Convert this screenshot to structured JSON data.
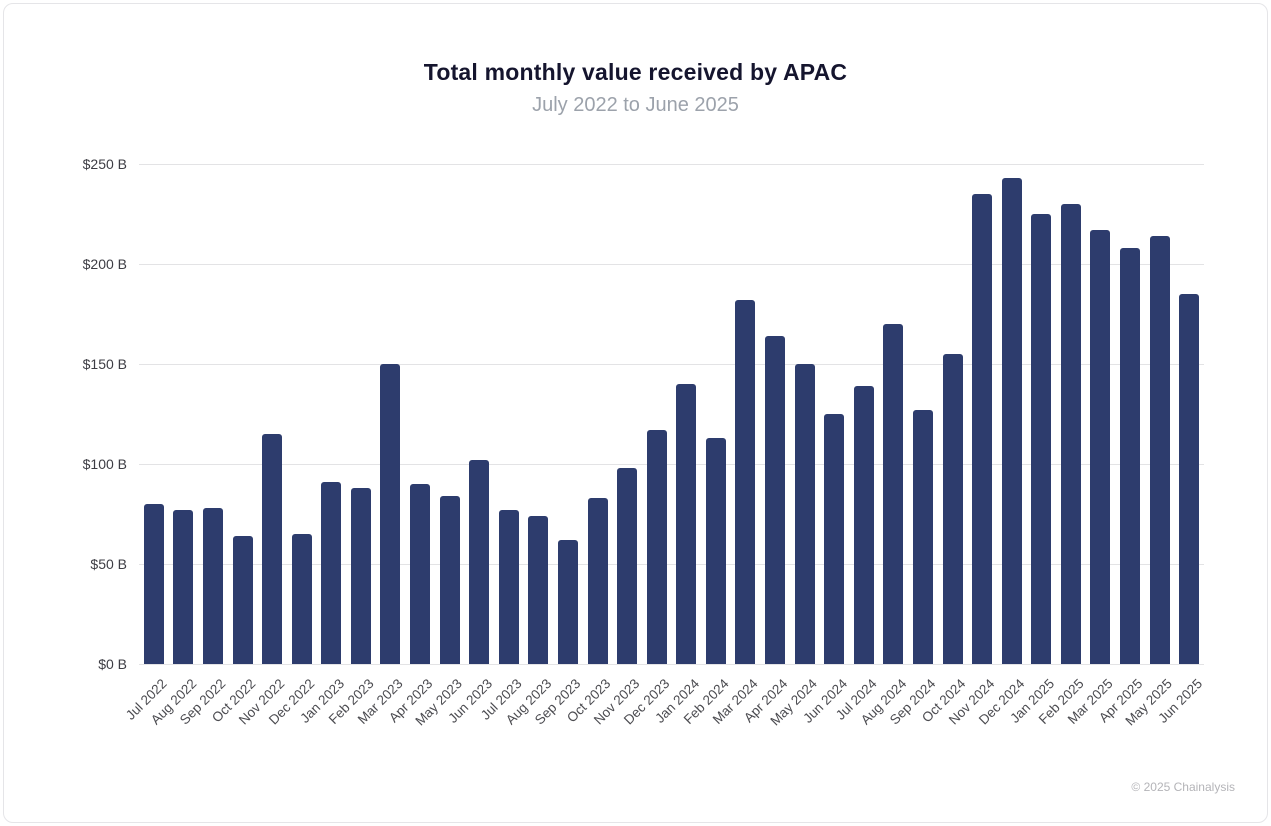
{
  "header": {
    "title": "Total monthly value received by APAC",
    "subtitle": "July 2022 to June 2025"
  },
  "footer": {
    "attribution": "© 2025 Chainalysis"
  },
  "chart_data": {
    "type": "bar",
    "title": "Total monthly value received by APAC",
    "subtitle": "July 2022 to June 2025",
    "unit": "USD billions",
    "xlabel": "",
    "ylabel": "",
    "ylim": [
      0,
      250
    ],
    "ytick_step": 50,
    "ytick_labels": [
      "$0 B",
      "$50 B",
      "$100 B",
      "$150 B",
      "$200 B",
      "$250 B"
    ],
    "grid": "horizontal",
    "legend": "none",
    "bar_color": "#2d3c6d",
    "background": "#ffffff",
    "categories": [
      "Jul 2022",
      "Aug 2022",
      "Sep 2022",
      "Oct 2022",
      "Nov 2022",
      "Dec 2022",
      "Jan 2023",
      "Feb 2023",
      "Mar 2023",
      "Apr 2023",
      "May 2023",
      "Jun 2023",
      "Jul 2023",
      "Aug 2023",
      "Sep 2023",
      "Oct 2023",
      "Nov 2023",
      "Dec 2023",
      "Jan 2024",
      "Feb 2024",
      "Mar 2024",
      "Apr 2024",
      "May 2024",
      "Jun 2024",
      "Jul 2024",
      "Aug 2024",
      "Sep 2024",
      "Oct 2024",
      "Nov 2024",
      "Dec 2024",
      "Jan 2025",
      "Feb 2025",
      "Mar 2025",
      "Apr 2025",
      "May 2025",
      "Jun 2025"
    ],
    "values": [
      80,
      77,
      78,
      64,
      115,
      65,
      91,
      88,
      150,
      90,
      84,
      102,
      77,
      74,
      62,
      83,
      98,
      117,
      140,
      113,
      182,
      164,
      150,
      125,
      139,
      170,
      127,
      155,
      235,
      243,
      225,
      230,
      217,
      208,
      214,
      185
    ]
  }
}
